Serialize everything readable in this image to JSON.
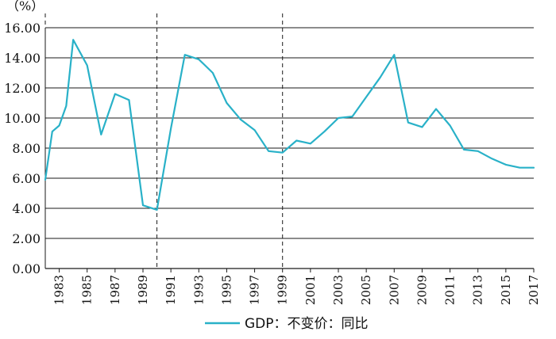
{
  "chart_data": {
    "type": "line",
    "unit_label": "（%）",
    "ylim": [
      0,
      16
    ],
    "yticks": [
      "0.00",
      "2.00",
      "4.00",
      "6.00",
      "8.00",
      "10.00",
      "12.00",
      "14.00",
      "16.00"
    ],
    "x_range": [
      1982,
      2017
    ],
    "xticks": [
      "1983",
      "1985",
      "1987",
      "1989",
      "1991",
      "1993",
      "1995",
      "1997",
      "1999",
      "2001",
      "2003",
      "2005",
      "2007",
      "2009",
      "2011",
      "2013",
      "2015",
      "2017"
    ],
    "grid": "horizontal",
    "dashed_vlines": [
      1982,
      1990,
      1999
    ],
    "legend": {
      "position": "bottom"
    },
    "series": [
      {
        "name": "GDP：不变价：同比",
        "color": "#29b1c8",
        "points": [
          [
            1982,
            5.9
          ],
          [
            1982.5,
            9.1
          ],
          [
            1983,
            9.5
          ],
          [
            1983.5,
            10.8
          ],
          [
            1984,
            15.2
          ],
          [
            1985,
            13.5
          ],
          [
            1986,
            8.9
          ],
          [
            1987,
            11.6
          ],
          [
            1988,
            11.2
          ],
          [
            1989,
            4.2
          ],
          [
            1990,
            3.9
          ],
          [
            1991,
            9.3
          ],
          [
            1992,
            14.2
          ],
          [
            1993,
            13.9
          ],
          [
            1994,
            13.0
          ],
          [
            1995,
            11.0
          ],
          [
            1996,
            9.9
          ],
          [
            1997,
            9.2
          ],
          [
            1998,
            7.8
          ],
          [
            1999,
            7.7
          ],
          [
            2000,
            8.5
          ],
          [
            2001,
            8.3
          ],
          [
            2002,
            9.1
          ],
          [
            2003,
            10.0
          ],
          [
            2004,
            10.1
          ],
          [
            2005,
            11.4
          ],
          [
            2006,
            12.7
          ],
          [
            2007,
            14.2
          ],
          [
            2008,
            9.7
          ],
          [
            2009,
            9.4
          ],
          [
            2010,
            10.6
          ],
          [
            2011,
            9.5
          ],
          [
            2012,
            7.9
          ],
          [
            2013,
            7.8
          ],
          [
            2014,
            7.3
          ],
          [
            2015,
            6.9
          ],
          [
            2016,
            6.7
          ],
          [
            2017,
            6.7
          ]
        ]
      }
    ]
  }
}
